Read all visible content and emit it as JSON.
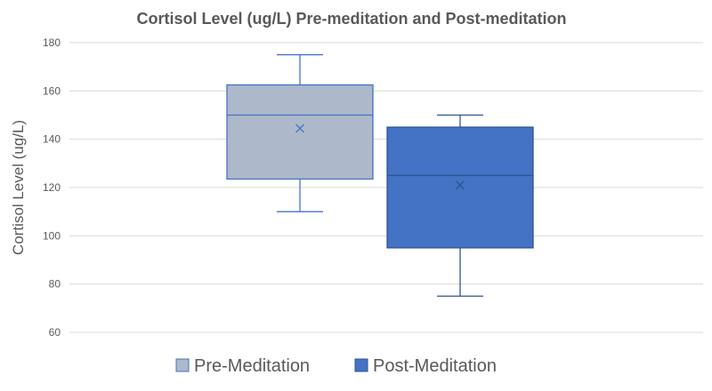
{
  "chart_data": {
    "type": "box",
    "title": "Cortisol Level (ug/L) Pre-meditation and Post-meditation",
    "xlabel": "",
    "ylabel": "Cortisol Level (ug/L)",
    "ylim": [
      60,
      180
    ],
    "yticks": [
      60,
      80,
      100,
      120,
      140,
      160,
      180
    ],
    "grid": true,
    "legend_position": "bottom",
    "series": [
      {
        "name": "Pre-Meditation",
        "min": 110,
        "q1": 123.5,
        "median": 150,
        "q3": 162.5,
        "max": 175,
        "mean": 144.5,
        "fill": "#adb9ca",
        "stroke": "#4472c4"
      },
      {
        "name": "Post-Meditation",
        "min": 75,
        "q1": 95,
        "median": 125,
        "q3": 145,
        "max": 150,
        "mean": 121,
        "fill": "#4472c4",
        "stroke": "#2f5597"
      }
    ]
  }
}
